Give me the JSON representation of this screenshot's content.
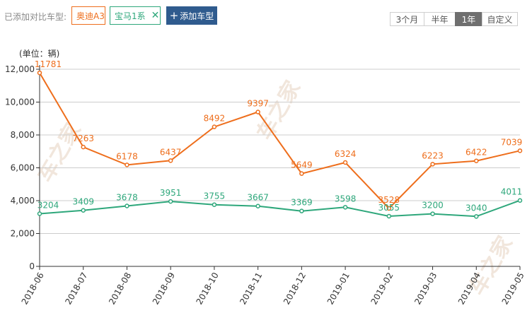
{
  "toolbar": {
    "compare_label": "已添加对比车型:",
    "chips": [
      {
        "label": "奥迪A3",
        "color": "#ee6e1c"
      },
      {
        "label": "宝马1系",
        "color": "#2ea77b",
        "close_icon": "close-icon"
      }
    ],
    "add_button": {
      "icon": "plus-icon",
      "label": "添加车型"
    },
    "ranges": [
      {
        "label": "3个月",
        "active": false
      },
      {
        "label": "半年",
        "active": false
      },
      {
        "label": "1年",
        "active": true
      },
      {
        "label": "自定义",
        "active": false
      }
    ]
  },
  "watermark": "车之家",
  "chart_data": {
    "type": "line",
    "ylabel": "(单位：辆)",
    "ylim": [
      0,
      12000
    ],
    "yticks": [
      "0",
      "2,000",
      "4,000",
      "6,000",
      "8,000",
      "10,000",
      "12,000"
    ],
    "ytick_values": [
      0,
      2000,
      4000,
      6000,
      8000,
      10000,
      12000
    ],
    "grid": true,
    "categories": [
      "2018-06",
      "2018-07",
      "2018-08",
      "2018-09",
      "2018-10",
      "2018-11",
      "2018-12",
      "2019-01",
      "2019-02",
      "2019-03",
      "2019-04",
      "2019-05"
    ],
    "series": [
      {
        "name": "奥迪A3",
        "color": "#ee6e1c",
        "values": [
          11781,
          7263,
          6178,
          6437,
          8492,
          9397,
          5649,
          6324,
          3528,
          6223,
          6422,
          7039
        ]
      },
      {
        "name": "宝马1系",
        "color": "#2ea77b",
        "values": [
          3204,
          3409,
          3678,
          3951,
          3755,
          3667,
          3369,
          3598,
          3055,
          3200,
          3040,
          4011
        ]
      }
    ]
  }
}
